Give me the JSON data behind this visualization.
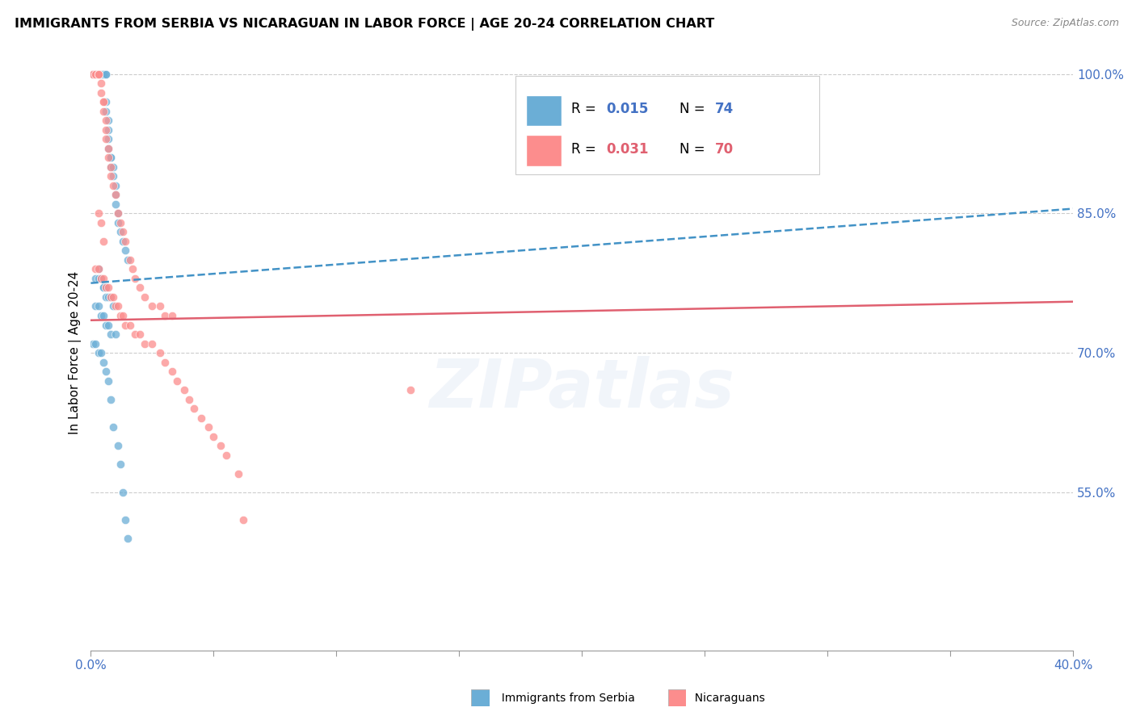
{
  "title": "IMMIGRANTS FROM SERBIA VS NICARAGUAN IN LABOR FORCE | AGE 20-24 CORRELATION CHART",
  "source": "Source: ZipAtlas.com",
  "ylabel": "In Labor Force | Age 20-24",
  "xlim": [
    0.0,
    0.4
  ],
  "ylim": [
    0.38,
    1.02
  ],
  "xticks": [
    0.0,
    0.05,
    0.1,
    0.15,
    0.2,
    0.25,
    0.3,
    0.35,
    0.4
  ],
  "xticklabels": [
    "0.0%",
    "",
    "",
    "",
    "",
    "",
    "",
    "",
    "40.0%"
  ],
  "yticks_right": [
    0.55,
    0.7,
    0.85,
    1.0
  ],
  "yticklabels_right": [
    "55.0%",
    "70.0%",
    "85.0%",
    "100.0%"
  ],
  "legend_r1": "0.015",
  "legend_n1": "74",
  "legend_r2": "0.031",
  "legend_n2": "70",
  "series1_color": "#6baed6",
  "series2_color": "#fc8d8d",
  "trendline1_color": "#4292c6",
  "trendline2_color": "#e06070",
  "watermark": "ZIPatlas",
  "serbia_x": [
    0.001,
    0.001,
    0.002,
    0.002,
    0.002,
    0.003,
    0.003,
    0.003,
    0.003,
    0.004,
    0.004,
    0.004,
    0.004,
    0.005,
    0.005,
    0.005,
    0.005,
    0.005,
    0.006,
    0.006,
    0.006,
    0.006,
    0.007,
    0.007,
    0.007,
    0.007,
    0.008,
    0.008,
    0.008,
    0.009,
    0.009,
    0.01,
    0.01,
    0.01,
    0.011,
    0.011,
    0.012,
    0.013,
    0.014,
    0.015,
    0.003,
    0.004,
    0.005,
    0.006,
    0.002,
    0.003,
    0.004,
    0.005,
    0.006,
    0.007,
    0.008,
    0.009,
    0.002,
    0.003,
    0.004,
    0.005,
    0.006,
    0.007,
    0.008,
    0.01,
    0.001,
    0.002,
    0.003,
    0.004,
    0.005,
    0.006,
    0.007,
    0.008,
    0.009,
    0.011,
    0.012,
    0.013,
    0.014,
    0.015
  ],
  "serbia_y": [
    1.0,
    1.0,
    1.0,
    1.0,
    1.0,
    1.0,
    1.0,
    1.0,
    1.0,
    1.0,
    1.0,
    1.0,
    1.0,
    1.0,
    1.0,
    1.0,
    1.0,
    1.0,
    1.0,
    1.0,
    0.97,
    0.96,
    0.95,
    0.94,
    0.93,
    0.92,
    0.91,
    0.91,
    0.9,
    0.9,
    0.89,
    0.88,
    0.87,
    0.86,
    0.85,
    0.84,
    0.83,
    0.82,
    0.81,
    0.8,
    0.79,
    0.78,
    0.77,
    0.76,
    0.78,
    0.78,
    0.78,
    0.77,
    0.77,
    0.76,
    0.76,
    0.75,
    0.75,
    0.75,
    0.74,
    0.74,
    0.73,
    0.73,
    0.72,
    0.72,
    0.71,
    0.71,
    0.7,
    0.7,
    0.69,
    0.68,
    0.67,
    0.65,
    0.62,
    0.6,
    0.58,
    0.55,
    0.52,
    0.5
  ],
  "nicaragua_x": [
    0.001,
    0.001,
    0.002,
    0.002,
    0.003,
    0.003,
    0.003,
    0.004,
    0.004,
    0.005,
    0.005,
    0.005,
    0.006,
    0.006,
    0.006,
    0.007,
    0.007,
    0.008,
    0.008,
    0.009,
    0.01,
    0.011,
    0.012,
    0.013,
    0.014,
    0.016,
    0.017,
    0.018,
    0.02,
    0.022,
    0.025,
    0.028,
    0.03,
    0.033,
    0.002,
    0.003,
    0.004,
    0.005,
    0.006,
    0.007,
    0.008,
    0.009,
    0.01,
    0.011,
    0.012,
    0.013,
    0.014,
    0.016,
    0.018,
    0.02,
    0.022,
    0.025,
    0.028,
    0.03,
    0.033,
    0.035,
    0.038,
    0.04,
    0.042,
    0.045,
    0.048,
    0.05,
    0.053,
    0.055,
    0.06,
    0.062,
    0.13,
    0.003,
    0.004,
    0.005
  ],
  "nicaragua_y": [
    1.0,
    1.0,
    1.0,
    1.0,
    1.0,
    1.0,
    1.0,
    0.99,
    0.98,
    0.97,
    0.97,
    0.96,
    0.95,
    0.94,
    0.93,
    0.92,
    0.91,
    0.9,
    0.89,
    0.88,
    0.87,
    0.85,
    0.84,
    0.83,
    0.82,
    0.8,
    0.79,
    0.78,
    0.77,
    0.76,
    0.75,
    0.75,
    0.74,
    0.74,
    0.79,
    0.79,
    0.78,
    0.78,
    0.77,
    0.77,
    0.76,
    0.76,
    0.75,
    0.75,
    0.74,
    0.74,
    0.73,
    0.73,
    0.72,
    0.72,
    0.71,
    0.71,
    0.7,
    0.69,
    0.68,
    0.67,
    0.66,
    0.65,
    0.64,
    0.63,
    0.62,
    0.61,
    0.6,
    0.59,
    0.57,
    0.52,
    0.66,
    0.85,
    0.84,
    0.82
  ],
  "trendline_x": [
    0.0,
    0.4
  ],
  "serbia_trend_y": [
    0.775,
    0.855
  ],
  "nicaragua_trend_y": [
    0.735,
    0.755
  ]
}
